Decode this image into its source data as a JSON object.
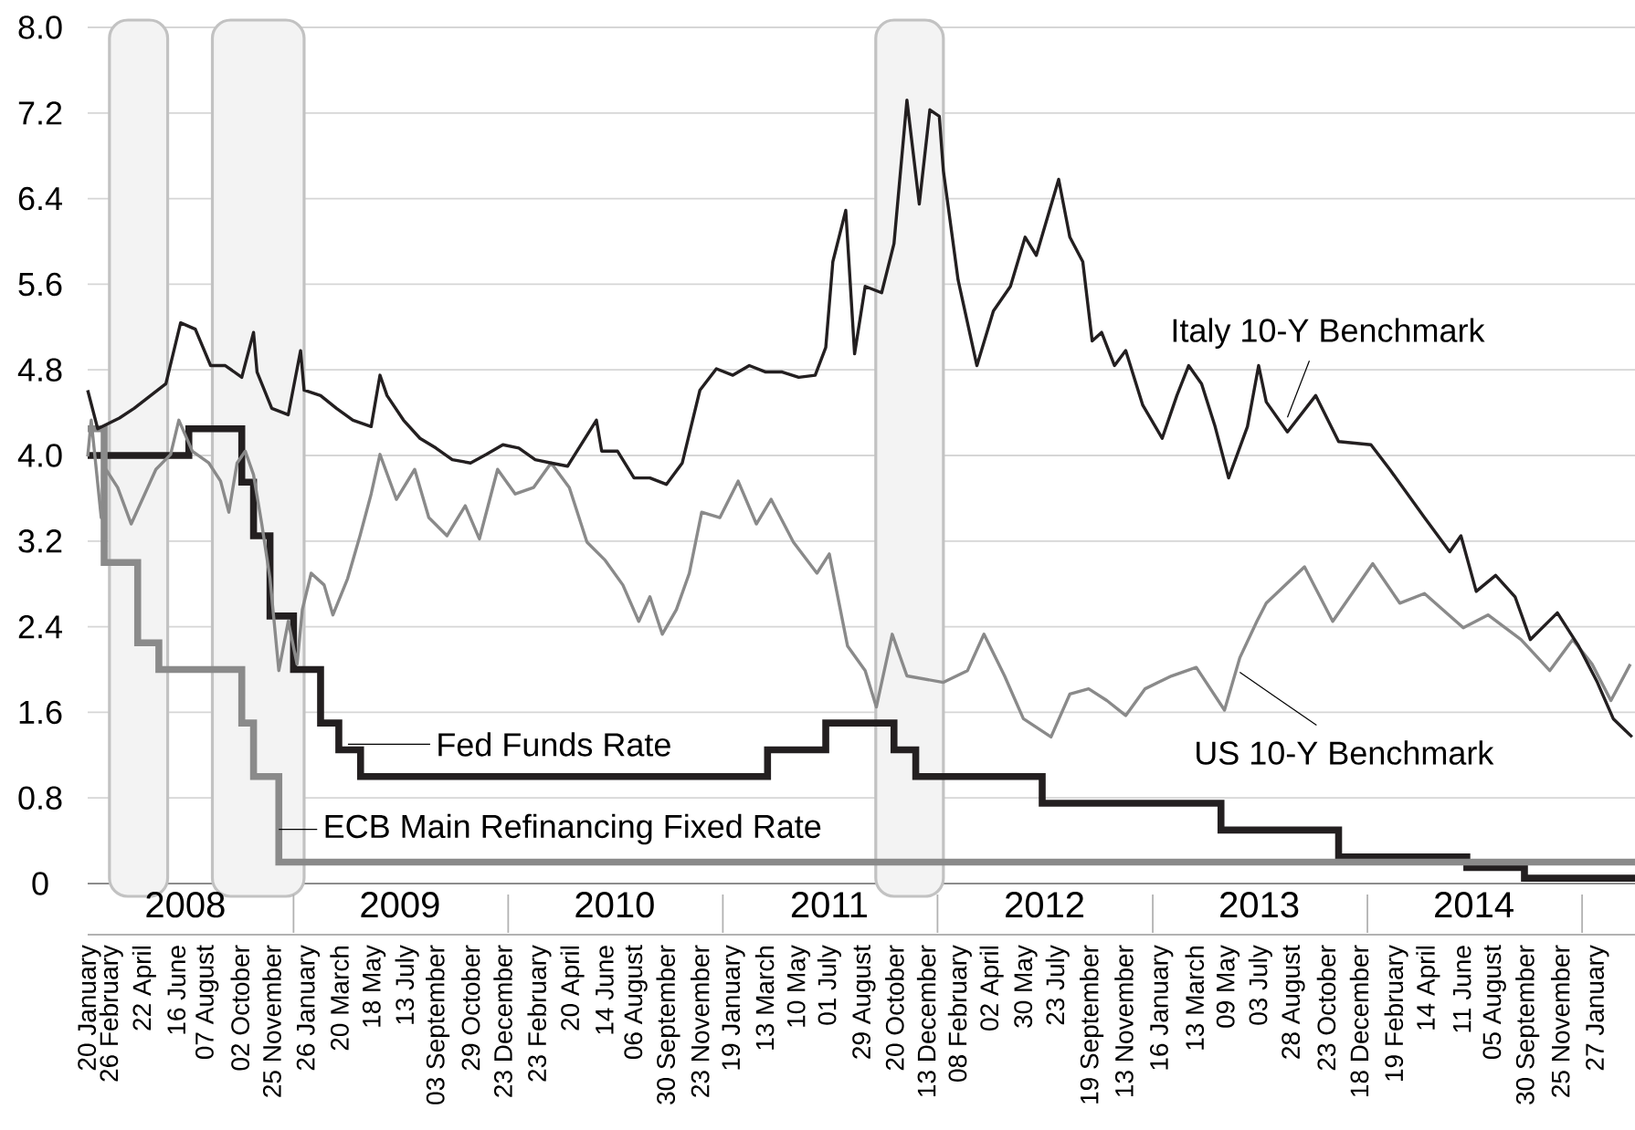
{
  "chart_data": {
    "type": "line",
    "xlim": [
      "2008-01-17",
      "2015-04-01"
    ],
    "ylim": [
      0,
      8
    ],
    "yticks": [
      0,
      0.8,
      1.6,
      2.4,
      3.2,
      {
        "value": 4,
        "label": "4.0"
      },
      4.8,
      5.6,
      6.4,
      7.2,
      {
        "value": 8,
        "label": "8.0"
      }
    ],
    "xticks": [
      {
        "value": "2008-01-20",
        "label": "20 January"
      },
      {
        "value": "2008-02-26",
        "label": "26 February"
      },
      {
        "value": "2008-04-22",
        "label": "22 April"
      },
      {
        "value": "2008-06-16",
        "label": "16 June"
      },
      {
        "value": "2008-08-07",
        "label": "07 August"
      },
      {
        "value": "2008-10-02",
        "label": "02 October"
      },
      {
        "value": "2008-11-25",
        "label": "25 November"
      },
      {
        "value": "2009-01-26",
        "label": "26 January"
      },
      {
        "value": "2009-03-20",
        "label": "20 March"
      },
      {
        "value": "2009-05-18",
        "label": "18 May"
      },
      {
        "value": "2009-07-13",
        "label": "13 July"
      },
      {
        "value": "2009-09-03",
        "label": "03 September"
      },
      {
        "value": "2009-10-29",
        "label": "29 October"
      },
      {
        "value": "2009-12-23",
        "label": "23 December"
      },
      {
        "value": "2010-02-23",
        "label": "23 February"
      },
      {
        "value": "2010-04-20",
        "label": "20 April"
      },
      {
        "value": "2010-06-14",
        "label": "14 June"
      },
      {
        "value": "2010-08-06",
        "label": "06 August"
      },
      {
        "value": "2010-09-30",
        "label": "30 September"
      },
      {
        "value": "2010-11-23",
        "label": "23 November"
      },
      {
        "value": "2011-01-19",
        "label": "19 January"
      },
      {
        "value": "2011-03-13",
        "label": "13 March"
      },
      {
        "value": "2011-05-10",
        "label": "10 May"
      },
      {
        "value": "2011-07-01",
        "label": "01 July"
      },
      {
        "value": "2011-08-29",
        "label": "29 August"
      },
      {
        "value": "2011-10-20",
        "label": "20 October"
      },
      {
        "value": "2011-12-13",
        "label": "13 December"
      },
      {
        "value": "2012-02-08",
        "label": "08 February"
      },
      {
        "value": "2012-04-02",
        "label": "02 April"
      },
      {
        "value": "2012-05-30",
        "label": "30 May"
      },
      {
        "value": "2012-07-23",
        "label": "23 July"
      },
      {
        "value": "2012-09-19",
        "label": "19 September"
      },
      {
        "value": "2012-11-13",
        "label": "13 November"
      },
      {
        "value": "2013-01-16",
        "label": "16 January"
      },
      {
        "value": "2013-03-13",
        "label": "13 March"
      },
      {
        "value": "2013-05-09",
        "label": "09 May"
      },
      {
        "value": "2013-07-03",
        "label": "03 July"
      },
      {
        "value": "2013-08-28",
        "label": "28 August"
      },
      {
        "value": "2013-10-23",
        "label": "23 October"
      },
      {
        "value": "2013-12-18",
        "label": "18 December"
      },
      {
        "value": "2014-02-19",
        "label": "19 February"
      },
      {
        "value": "2014-04-14",
        "label": "14 April"
      },
      {
        "value": "2014-06-11",
        "label": "11 June"
      },
      {
        "value": "2014-08-05",
        "label": "05 August"
      },
      {
        "value": "2014-09-30",
        "label": "30 September"
      },
      {
        "value": "2014-11-25",
        "label": "25 November"
      },
      {
        "value": "2015-01-27",
        "label": "27 January"
      }
    ],
    "x2lim": [
      "2008-01-17",
      "2015-04-01"
    ],
    "x2ticks": [
      {
        "value": "2008-07-01",
        "label": "2008"
      },
      {
        "value": "2009-07-01",
        "label": "2009"
      },
      {
        "value": "2010-07-01",
        "label": "2010"
      },
      {
        "value": "2011-07-01",
        "label": "2011"
      },
      {
        "value": "2012-07-01",
        "label": "2012"
      },
      {
        "value": "2013-07-01",
        "label": "2013"
      },
      {
        "value": "2014-07-01",
        "label": "2014"
      }
    ],
    "grid": "y",
    "bands": [
      {
        "axis": "x",
        "from": "2008-02-23",
        "to": "2008-06-01",
        "color": "#f3f3f3"
      },
      {
        "axis": "x",
        "from": "2008-08-16",
        "to": "2009-01-19",
        "color": "#f3f3f3"
      },
      {
        "axis": "x",
        "from": "2011-09-18",
        "to": "2012-01-11",
        "color": "#f3f3f3"
      }
    ],
    "series": [
      {
        "name": "Fed Funds Rate",
        "type": "step",
        "color": "#231f20",
        "x": [
          "2008-01-17",
          "2008-07-07",
          "2008-10-05",
          "2008-10-25",
          "2008-11-22",
          "2009-01-01",
          "2009-02-16",
          "2009-03-19",
          "2009-04-25",
          "2011-03-18",
          "2011-06-25",
          "2011-10-19",
          "2011-11-25",
          "2012-06-27",
          "2013-04-27",
          "2013-11-13",
          "2014-06-19",
          "2014-09-25",
          "2015-04-01"
        ],
        "values": [
          4.0,
          4.25,
          3.75,
          3.25,
          2.5,
          2.0,
          1.5,
          1.25,
          1.0,
          1.25,
          1.5,
          1.25,
          1.0,
          0.75,
          0.5,
          0.25,
          0.15,
          0.05,
          0.05
        ]
      },
      {
        "name": "ECB Main Refinancing Fixed Rate",
        "type": "step",
        "color": "#8a8a8a",
        "x": [
          "2008-01-17",
          "2008-02-14",
          "2008-04-11",
          "2008-05-17",
          "2008-10-05",
          "2008-10-25",
          "2008-12-07",
          "2015-04-01"
        ],
        "values": [
          4.25,
          3.0,
          2.25,
          2.0,
          1.5,
          1.0,
          0.2,
          0.2
        ]
      },
      {
        "name": "US 10-Y Benchmark",
        "color": "#8a8a8a",
        "x": [
          "2008-01-17",
          "2008-01-23",
          "2008-02-09",
          "2008-02-17",
          "2008-03-08",
          "2008-03-31",
          "2008-04-19",
          "2008-05-12",
          "2008-06-06",
          "2008-06-20",
          "2008-07-13",
          "2008-08-10",
          "2008-08-30",
          "2008-09-13",
          "2008-09-27",
          "2008-10-11",
          "2008-10-25",
          "2008-11-08",
          "2008-11-22",
          "2008-12-07",
          "2008-12-23",
          "2009-01-07",
          "2009-01-16",
          "2009-01-31",
          "2009-02-22",
          "2009-03-09",
          "2009-04-03",
          "2009-04-24",
          "2009-05-13",
          "2009-05-28",
          "2009-06-25",
          "2009-07-26",
          "2009-08-19",
          "2009-09-19",
          "2009-10-20",
          "2009-11-13",
          "2009-12-14",
          "2010-01-13",
          "2010-02-13",
          "2010-03-15",
          "2010-04-15",
          "2010-05-15",
          "2010-06-15",
          "2010-07-15",
          "2010-08-11",
          "2010-08-30",
          "2010-09-20",
          "2010-10-14",
          "2010-11-05",
          "2010-11-26",
          "2010-12-27",
          "2011-01-27",
          "2011-02-27",
          "2011-03-24",
          "2011-05-01",
          "2011-06-10",
          "2011-07-01",
          "2011-08-01",
          "2011-08-31",
          "2011-09-19",
          "2011-10-16",
          "2011-11-10",
          "2012-01-11",
          "2012-02-21",
          "2012-03-20",
          "2012-04-24",
          "2012-05-26",
          "2012-07-12",
          "2012-08-13",
          "2012-09-14",
          "2012-10-15",
          "2012-11-16",
          "2012-12-19",
          "2013-02-02",
          "2013-03-16",
          "2013-05-03",
          "2013-05-29",
          "2013-06-27",
          "2013-07-13",
          "2013-09-16",
          "2013-11-03",
          "2014-01-10",
          "2014-02-25",
          "2014-04-08",
          "2014-06-13",
          "2014-07-25",
          "2014-09-19",
          "2014-11-07",
          "2014-12-16",
          "2015-01-18",
          "2015-02-19",
          "2015-03-24"
        ],
        "values": [
          3.99,
          4.33,
          3.42,
          3.87,
          3.7,
          3.36,
          3.59,
          3.87,
          4.01,
          4.33,
          4.04,
          3.93,
          3.76,
          3.47,
          3.93,
          4.04,
          3.82,
          3.36,
          2.85,
          1.99,
          2.45,
          2.05,
          2.56,
          2.9,
          2.79,
          2.51,
          2.85,
          3.25,
          3.64,
          4.01,
          3.59,
          3.87,
          3.42,
          3.25,
          3.53,
          3.22,
          3.87,
          3.64,
          3.7,
          3.93,
          3.7,
          3.19,
          3.02,
          2.79,
          2.45,
          2.68,
          2.33,
          2.56,
          2.9,
          3.47,
          3.42,
          3.76,
          3.36,
          3.59,
          3.19,
          2.9,
          3.08,
          2.22,
          1.99,
          1.65,
          2.33,
          1.94,
          1.88,
          1.99,
          2.33,
          1.94,
          1.54,
          1.37,
          1.77,
          1.82,
          1.71,
          1.57,
          1.82,
          1.94,
          2.02,
          1.62,
          2.11,
          2.45,
          2.62,
          2.96,
          2.45,
          2.99,
          2.62,
          2.71,
          2.39,
          2.51,
          2.28,
          1.99,
          2.28,
          2.05,
          1.71,
          2.05
        ]
      },
      {
        "name": "Italy 10-Y Benchmark",
        "color": "#231f20",
        "x": [
          "2008-01-17",
          "2008-02-03",
          "2008-03-11",
          "2008-04-05",
          "2008-05-03",
          "2008-05-29",
          "2008-06-23",
          "2008-07-18",
          "2008-08-13",
          "2008-09-07",
          "2008-10-05",
          "2008-10-25",
          "2008-10-31",
          "2008-11-25",
          "2008-12-23",
          "2009-01-13",
          "2009-01-19",
          "2009-02-16",
          "2009-03-15",
          "2009-04-12",
          "2009-05-13",
          "2009-05-28",
          "2009-06-09",
          "2009-07-07",
          "2009-08-04",
          "2009-08-31",
          "2009-09-28",
          "2009-10-29",
          "2009-11-25",
          "2009-12-23",
          "2010-01-19",
          "2010-02-16",
          "2010-03-15",
          "2010-04-12",
          "2010-05-31",
          "2010-06-09",
          "2010-07-06",
          "2010-08-03",
          "2010-08-30",
          "2010-09-27",
          "2010-10-24",
          "2010-11-23",
          "2010-12-21",
          "2011-01-18",
          "2011-02-15",
          "2011-03-15",
          "2011-04-12",
          "2011-05-10",
          "2011-06-07",
          "2011-06-25",
          "2011-07-07",
          "2011-07-29",
          "2011-08-13",
          "2011-08-31",
          "2011-09-28",
          "2011-10-19",
          "2011-11-10",
          "2011-12-01",
          "2011-12-19",
          "2012-01-04",
          "2012-01-11",
          "2012-02-05",
          "2012-03-08",
          "2012-04-05",
          "2012-05-04",
          "2012-05-29",
          "2012-06-17",
          "2012-07-25",
          "2012-08-13",
          "2012-09-04",
          "2012-09-20",
          "2012-10-06",
          "2012-10-28",
          "2012-11-16",
          "2012-12-15",
          "2013-01-17",
          "2013-02-11",
          "2013-03-03",
          "2013-03-25",
          "2013-04-17",
          "2013-05-10",
          "2013-06-11",
          "2013-06-30",
          "2013-07-13",
          "2013-08-18",
          "2013-10-05",
          "2013-11-13",
          "2014-01-07",
          "2014-02-08",
          "2014-04-08",
          "2014-05-21",
          "2014-06-09",
          "2014-07-05",
          "2014-08-07",
          "2014-09-09",
          "2014-10-05",
          "2014-11-20",
          "2014-12-26",
          "2015-01-27",
          "2015-02-23",
          "2015-03-27"
        ],
        "values": [
          4.61,
          4.25,
          4.35,
          4.44,
          4.56,
          4.67,
          5.24,
          5.18,
          4.84,
          4.84,
          4.73,
          5.15,
          4.78,
          4.44,
          4.38,
          4.98,
          4.61,
          4.56,
          4.44,
          4.33,
          4.27,
          4.75,
          4.56,
          4.33,
          4.16,
          4.07,
          3.96,
          3.93,
          4.01,
          4.1,
          4.07,
          3.96,
          3.93,
          3.9,
          4.33,
          4.04,
          4.04,
          3.79,
          3.79,
          3.73,
          3.93,
          4.61,
          4.81,
          4.75,
          4.84,
          4.78,
          4.78,
          4.73,
          4.75,
          5.01,
          5.81,
          6.29,
          4.95,
          5.58,
          5.52,
          5.98,
          7.32,
          6.35,
          7.23,
          7.17,
          6.66,
          5.64,
          4.84,
          5.35,
          5.58,
          6.04,
          5.87,
          6.58,
          6.04,
          5.81,
          5.07,
          5.15,
          4.84,
          4.98,
          4.47,
          4.16,
          4.56,
          4.84,
          4.67,
          4.27,
          3.79,
          4.27,
          4.84,
          4.5,
          4.22,
          4.56,
          4.13,
          4.1,
          3.87,
          3.42,
          3.1,
          3.25,
          2.73,
          2.88,
          2.68,
          2.28,
          2.53,
          2.22,
          1.88,
          1.54,
          1.37
        ]
      }
    ]
  }
}
